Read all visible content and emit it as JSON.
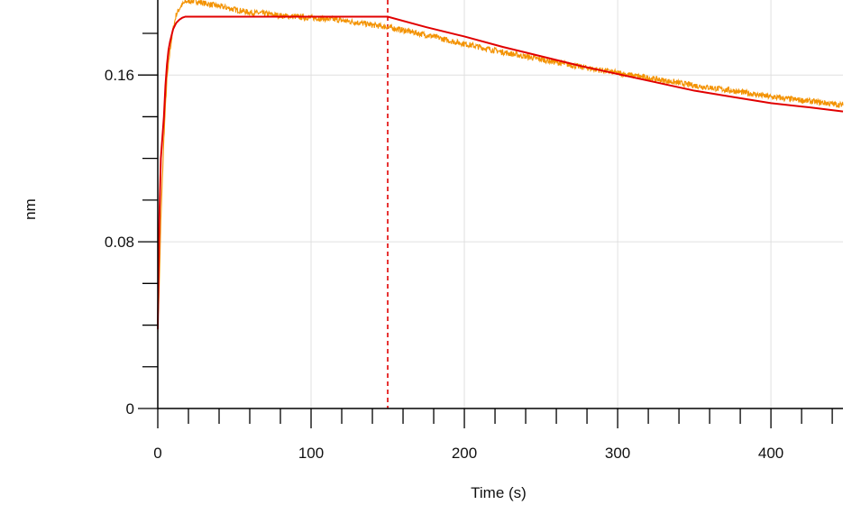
{
  "chart_data": {
    "type": "line",
    "title": "",
    "xlabel": "Time (s)",
    "ylabel": "nm",
    "xlim": [
      0,
      447
    ],
    "ylim": [
      0,
      0.196
    ],
    "x_ticks": [
      0,
      100,
      200,
      300,
      400
    ],
    "x_tick_labels": [
      "0",
      "100",
      "200",
      "300",
      "400"
    ],
    "x_minor_step": 20,
    "y_ticks": [
      0,
      0.08,
      0.16
    ],
    "y_tick_labels": [
      "0",
      "0.08",
      "0.16"
    ],
    "y_minor_step": 0.02,
    "grid": true,
    "colors": {
      "measured": "#f39200",
      "fit": "#e10000",
      "marker": "#e10000",
      "axis": "#000000",
      "grid": "#e0e0e0"
    },
    "series": [
      {
        "style": "noisy",
        "color": "#f39200",
        "x": [
          0,
          1,
          2,
          3,
          4,
          5,
          6,
          8,
          10,
          12,
          15,
          18,
          20,
          25,
          30,
          40,
          50,
          60,
          70,
          80,
          90,
          100,
          110,
          120,
          130,
          140,
          150,
          160,
          170,
          180,
          190,
          200,
          225,
          250,
          275,
          300,
          325,
          350,
          375,
          400,
          425,
          447
        ],
        "y": [
          0.038,
          0.06,
          0.09,
          0.11,
          0.13,
          0.145,
          0.158,
          0.172,
          0.182,
          0.189,
          0.193,
          0.195,
          0.1955,
          0.1955,
          0.1945,
          0.193,
          0.1915,
          0.19,
          0.1895,
          0.1885,
          0.188,
          0.1875,
          0.187,
          0.1862,
          0.1852,
          0.184,
          0.183,
          0.1815,
          0.18,
          0.1785,
          0.1765,
          0.175,
          0.171,
          0.1675,
          0.164,
          0.161,
          0.158,
          0.155,
          0.1525,
          0.1495,
          0.1475,
          0.1455
        ]
      },
      {
        "style": "smooth",
        "color": "#e10000",
        "x": [
          0,
          1,
          2,
          3,
          4,
          5,
          6,
          7,
          8,
          10,
          12,
          14,
          16,
          18,
          20,
          30,
          50,
          75,
          100,
          125,
          150,
          175,
          200,
          225,
          250,
          275,
          300,
          325,
          350,
          375,
          400,
          425,
          447
        ],
        "y": [
          0.038,
          0.09,
          0.12,
          0.13,
          0.14,
          0.155,
          0.165,
          0.172,
          0.176,
          0.182,
          0.185,
          0.1865,
          0.1875,
          0.188,
          0.188,
          0.188,
          0.188,
          0.188,
          0.188,
          0.188,
          0.188,
          0.183,
          0.1785,
          0.1735,
          0.169,
          0.1645,
          0.1605,
          0.1565,
          0.1525,
          0.1495,
          0.1465,
          0.1445,
          0.1425
        ]
      }
    ],
    "markers": [
      {
        "x": 150,
        "color": "#e10000",
        "style": "dashed"
      }
    ]
  }
}
